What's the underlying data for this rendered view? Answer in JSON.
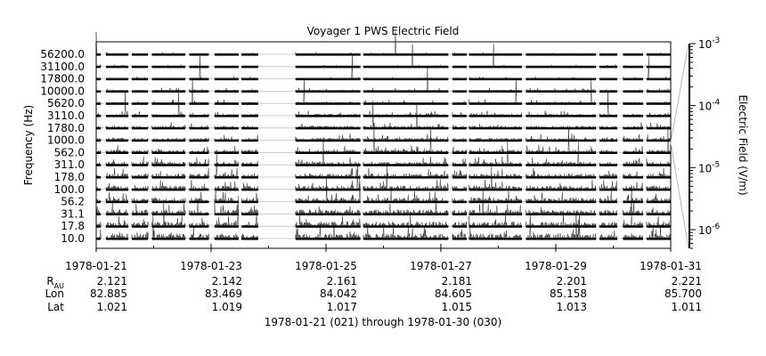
{
  "chart_data": {
    "type": "heatmap",
    "title": "Voyager 1 PWS Electric Field",
    "ylabel": "Frequency (Hz)",
    "zlabel": "Electric Field (V/m)",
    "y_scale": "log",
    "z_scale": "log",
    "channels_hz": [
      10.0,
      17.8,
      31.1,
      56.2,
      100.0,
      178.0,
      311.0,
      562.0,
      1000.0,
      1780.0,
      3110.0,
      5620.0,
      10000.0,
      17800.0,
      31100.0,
      56200.0
    ],
    "y_tick_labels": [
      "10.0",
      "17.8",
      "31.1",
      "56.2",
      "100.0",
      "178.0",
      "311.0",
      "562.0",
      "1000.0",
      "1780.0",
      "3110.0",
      "5620.0",
      "10000.0",
      "17800.0",
      "31100.0",
      "56200.0"
    ],
    "x_range": [
      "1978-01-21",
      "1978-01-31"
    ],
    "x_tick_labels": [
      "1978-01-21",
      "1978-01-23",
      "1978-01-25",
      "1978-01-27",
      "1978-01-29",
      "1978-01-31"
    ],
    "x_tick_days": [
      0,
      2,
      4,
      6,
      8,
      10
    ],
    "z_range": [
      5e-07,
      0.001
    ],
    "z_ticks": [
      {
        "value": 1e-06,
        "base": "10",
        "exp": "-6"
      },
      {
        "value": 1e-05,
        "base": "10",
        "exp": "-5"
      },
      {
        "value": 0.0001,
        "base": "10",
        "exp": "-4"
      },
      {
        "value": 0.001,
        "base": "10",
        "exp": "-3"
      }
    ],
    "coverage_days": [
      [
        0.0,
        0.08
      ],
      [
        0.17,
        0.56
      ],
      [
        0.62,
        0.9
      ],
      [
        0.97,
        1.55
      ],
      [
        1.62,
        1.96
      ],
      [
        2.06,
        2.48
      ],
      [
        2.53,
        2.82
      ],
      [
        3.47,
        4.6
      ],
      [
        4.65,
        6.13
      ],
      [
        6.2,
        6.45
      ],
      [
        6.49,
        7.41
      ],
      [
        7.48,
        8.7
      ],
      [
        8.76,
        9.07
      ],
      [
        9.17,
        9.52
      ],
      [
        9.58,
        10.0
      ]
    ],
    "ephemeris": {
      "labels": {
        "rau_main": "R",
        "rau_sub": "AU",
        "lon": "Lon",
        "lat": "Lat"
      },
      "rau": [
        "2.121",
        "2.142",
        "2.161",
        "2.181",
        "2.201",
        "2.221"
      ],
      "lon": [
        "82.885",
        "83.469",
        "84.042",
        "84.605",
        "85.158",
        "85.700"
      ],
      "lat": [
        "1.021",
        "1.019",
        "1.017",
        "1.015",
        "1.013",
        "1.011"
      ]
    },
    "footer": "1978-01-21 (021) through 1978-01-30 (030)"
  }
}
